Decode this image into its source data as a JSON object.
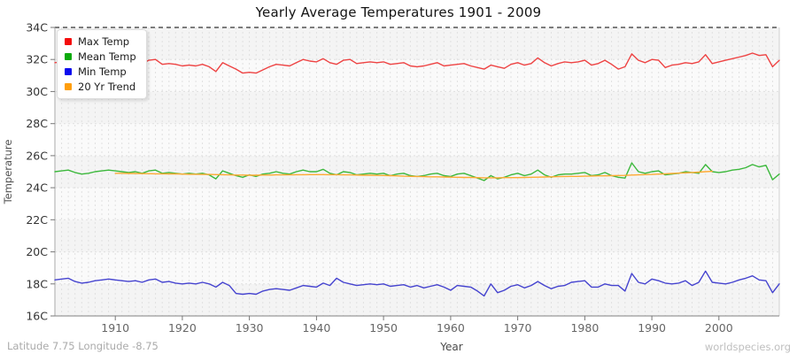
{
  "header": {
    "title": "Yearly Average Temperatures 1901 - 2009"
  },
  "footer": {
    "left": "Latitude 7.75 Longitude -8.75",
    "right": "worldspecies.org"
  },
  "axes": {
    "y_label": "Temperature",
    "x_label": "Year",
    "y_ticks": [
      {
        "value": 34,
        "label": "34C"
      },
      {
        "value": 32,
        "label": "32C"
      },
      {
        "value": 30,
        "label": "30C"
      },
      {
        "value": 28,
        "label": "28C"
      },
      {
        "value": 26,
        "label": "26C"
      },
      {
        "value": 24,
        "label": "24C"
      },
      {
        "value": 22,
        "label": "22C"
      },
      {
        "value": 20,
        "label": "20C"
      },
      {
        "value": 18,
        "label": "18C"
      },
      {
        "value": 16,
        "label": "16C"
      }
    ],
    "x_ticks": [
      {
        "value": 1910,
        "label": "1910"
      },
      {
        "value": 1920,
        "label": "1920"
      },
      {
        "value": 1930,
        "label": "1930"
      },
      {
        "value": 1940,
        "label": "1940"
      },
      {
        "value": 1950,
        "label": "1950"
      },
      {
        "value": 1960,
        "label": "1960"
      },
      {
        "value": 1970,
        "label": "1970"
      },
      {
        "value": 1980,
        "label": "1980"
      },
      {
        "value": 1990,
        "label": "1990"
      },
      {
        "value": 2000,
        "label": "2000"
      }
    ]
  },
  "legend": {
    "items": [
      {
        "label": "Max Temp",
        "color": "#f40b0b"
      },
      {
        "label": "Mean Temp",
        "color": "#0caa0c"
      },
      {
        "label": "Min Temp",
        "color": "#0b0bee"
      },
      {
        "label": "20 Yr Trend",
        "color": "#ff9e0b"
      }
    ]
  },
  "chart_data": {
    "type": "line",
    "title": "Yearly Average Temperatures 1901 - 2009",
    "xlabel": "Year",
    "ylabel": "Temperature",
    "x_range": [
      1901,
      2009
    ],
    "ylim": [
      16,
      34
    ],
    "grid": true,
    "legend_position": "top-left",
    "years": [
      1901,
      1902,
      1903,
      1904,
      1905,
      1906,
      1907,
      1908,
      1909,
      1910,
      1911,
      1912,
      1913,
      1914,
      1915,
      1916,
      1917,
      1918,
      1919,
      1920,
      1921,
      1922,
      1923,
      1924,
      1925,
      1926,
      1927,
      1928,
      1929,
      1930,
      1931,
      1932,
      1933,
      1934,
      1935,
      1936,
      1937,
      1938,
      1939,
      1940,
      1941,
      1942,
      1943,
      1944,
      1945,
      1946,
      1947,
      1948,
      1949,
      1950,
      1951,
      1952,
      1953,
      1954,
      1955,
      1956,
      1957,
      1958,
      1959,
      1960,
      1961,
      1962,
      1963,
      1964,
      1965,
      1966,
      1967,
      1968,
      1969,
      1970,
      1971,
      1972,
      1973,
      1974,
      1975,
      1976,
      1977,
      1978,
      1979,
      1980,
      1981,
      1982,
      1983,
      1984,
      1985,
      1986,
      1987,
      1988,
      1989,
      1990,
      1991,
      1992,
      1993,
      1994,
      1995,
      1996,
      1997,
      1998,
      1999,
      2000,
      2001,
      2002,
      2003,
      2004,
      2005,
      2006,
      2007,
      2008,
      2009
    ],
    "series": [
      {
        "name": "Max Temp",
        "color": "#ee4343",
        "values": [
          31.8,
          31.85,
          31.9,
          31.75,
          31.65,
          31.7,
          31.8,
          31.9,
          31.95,
          31.9,
          31.85,
          31.8,
          31.85,
          31.75,
          31.95,
          32.0,
          31.7,
          31.75,
          31.7,
          31.6,
          31.65,
          31.6,
          31.7,
          31.55,
          31.25,
          31.8,
          31.6,
          31.4,
          31.15,
          31.2,
          31.15,
          31.35,
          31.55,
          31.7,
          31.65,
          31.6,
          31.8,
          32.0,
          31.9,
          31.85,
          32.05,
          31.8,
          31.7,
          31.95,
          32.0,
          31.75,
          31.8,
          31.85,
          31.8,
          31.85,
          31.7,
          31.75,
          31.8,
          31.6,
          31.55,
          31.6,
          31.7,
          31.8,
          31.6,
          31.65,
          31.7,
          31.75,
          31.6,
          31.5,
          31.4,
          31.65,
          31.55,
          31.45,
          31.7,
          31.8,
          31.65,
          31.75,
          32.1,
          31.8,
          31.6,
          31.75,
          31.85,
          31.8,
          31.85,
          31.95,
          31.65,
          31.75,
          31.95,
          31.7,
          31.4,
          31.55,
          32.35,
          31.95,
          31.8,
          32.0,
          31.95,
          31.5,
          31.65,
          31.7,
          31.8,
          31.75,
          31.85,
          32.3,
          31.75,
          31.85,
          31.95,
          32.05,
          32.15,
          32.25,
          32.4,
          32.25,
          32.3,
          31.55,
          31.95
        ]
      },
      {
        "name": "Mean Temp",
        "color": "#3cb83c",
        "values": [
          25.0,
          25.05,
          25.1,
          24.95,
          24.85,
          24.9,
          25.0,
          25.05,
          25.1,
          25.05,
          25.0,
          24.95,
          25.0,
          24.9,
          25.05,
          25.1,
          24.9,
          24.95,
          24.9,
          24.85,
          24.9,
          24.85,
          24.9,
          24.8,
          24.55,
          25.05,
          24.9,
          24.75,
          24.65,
          24.8,
          24.7,
          24.85,
          24.9,
          25.0,
          24.9,
          24.85,
          25.0,
          25.1,
          25.0,
          25.0,
          25.15,
          24.9,
          24.8,
          25.0,
          24.95,
          24.8,
          24.85,
          24.9,
          24.85,
          24.9,
          24.75,
          24.85,
          24.9,
          24.75,
          24.7,
          24.75,
          24.85,
          24.9,
          24.75,
          24.7,
          24.85,
          24.9,
          24.75,
          24.6,
          24.45,
          24.75,
          24.55,
          24.65,
          24.8,
          24.9,
          24.75,
          24.85,
          25.1,
          24.8,
          24.65,
          24.8,
          24.85,
          24.85,
          24.9,
          24.95,
          24.75,
          24.8,
          24.95,
          24.75,
          24.65,
          24.6,
          25.55,
          25.0,
          24.9,
          25.0,
          25.05,
          24.8,
          24.85,
          24.9,
          25.0,
          24.95,
          24.9,
          25.45,
          25.0,
          24.95,
          25.0,
          25.1,
          25.15,
          25.25,
          25.45,
          25.3,
          25.4,
          24.5,
          24.85
        ]
      },
      {
        "name": "Min Temp",
        "color": "#4543cf",
        "values": [
          18.25,
          18.3,
          18.35,
          18.15,
          18.05,
          18.1,
          18.2,
          18.25,
          18.3,
          18.25,
          18.2,
          18.15,
          18.2,
          18.1,
          18.25,
          18.3,
          18.1,
          18.15,
          18.05,
          18.0,
          18.05,
          18.0,
          18.1,
          18.0,
          17.8,
          18.1,
          17.9,
          17.4,
          17.35,
          17.4,
          17.35,
          17.55,
          17.65,
          17.7,
          17.65,
          17.6,
          17.75,
          17.9,
          17.85,
          17.8,
          18.05,
          17.9,
          18.35,
          18.1,
          18.0,
          17.9,
          17.95,
          18.0,
          17.95,
          18.0,
          17.85,
          17.9,
          17.95,
          17.8,
          17.9,
          17.75,
          17.85,
          17.95,
          17.8,
          17.6,
          17.9,
          17.85,
          17.8,
          17.55,
          17.25,
          18.0,
          17.45,
          17.6,
          17.85,
          17.95,
          17.75,
          17.9,
          18.15,
          17.9,
          17.7,
          17.85,
          17.9,
          18.1,
          18.15,
          18.2,
          17.8,
          17.8,
          18.0,
          17.9,
          17.9,
          17.55,
          18.65,
          18.1,
          18.0,
          18.3,
          18.2,
          18.05,
          18.0,
          18.05,
          18.2,
          17.9,
          18.1,
          18.8,
          18.1,
          18.05,
          18.0,
          18.1,
          18.25,
          18.35,
          18.5,
          18.25,
          18.2,
          17.45,
          18.0
        ]
      },
      {
        "name": "20 Yr Trend",
        "color": "#ffaa33",
        "start_year": 1910,
        "values": [
          24.9,
          24.9,
          24.89,
          24.89,
          24.88,
          24.88,
          24.87,
          24.87,
          24.86,
          24.86,
          24.85,
          24.84,
          24.84,
          24.83,
          24.83,
          24.82,
          24.81,
          24.8,
          24.79,
          24.79,
          24.78,
          24.78,
          24.79,
          24.79,
          24.8,
          24.8,
          24.8,
          24.81,
          24.81,
          24.82,
          24.82,
          24.82,
          24.81,
          24.81,
          24.8,
          24.8,
          24.79,
          24.78,
          24.78,
          24.77,
          24.76,
          24.75,
          24.74,
          24.72,
          24.71,
          24.7,
          24.69,
          24.68,
          24.68,
          24.67,
          24.66,
          24.65,
          24.64,
          24.64,
          24.63,
          24.62,
          24.62,
          24.62,
          24.63,
          24.63,
          24.63,
          24.64,
          24.65,
          24.66,
          24.67,
          24.68,
          24.69,
          24.7,
          24.71,
          24.71,
          24.72,
          24.73,
          24.74,
          24.74,
          24.75,
          24.76,
          24.77,
          24.79,
          24.8,
          24.82,
          24.83,
          24.85,
          24.87,
          24.89,
          24.91,
          24.93,
          24.95,
          24.97,
          25.0,
          25.02
        ]
      }
    ]
  }
}
